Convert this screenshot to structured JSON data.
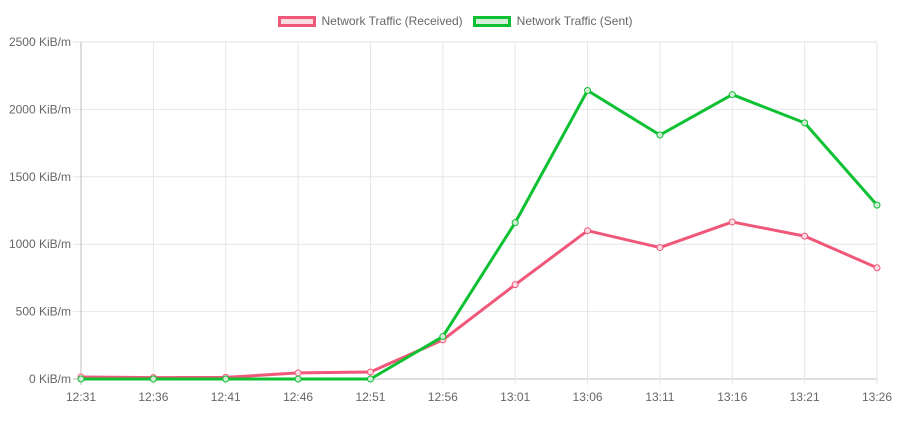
{
  "chart_data": {
    "type": "line",
    "categories": [
      "12:31",
      "12:36",
      "12:41",
      "12:46",
      "12:51",
      "12:56",
      "13:01",
      "13:06",
      "13:11",
      "13:16",
      "13:21",
      "13:26"
    ],
    "series": [
      {
        "name": "Network Traffic (Received)",
        "color": "#f0587a",
        "fill": "#f9dce2",
        "values": [
          15,
          10,
          12,
          45,
          52,
          290,
          700,
          1100,
          975,
          1165,
          1060,
          825
        ]
      },
      {
        "name": "Network Traffic (Sent)",
        "color": "#0ec133",
        "fill": "#d2ecd6",
        "values": [
          0,
          0,
          0,
          0,
          0,
          315,
          1160,
          2140,
          1810,
          2110,
          1900,
          1290
        ]
      }
    ],
    "yticks": [
      "0 KiB/m",
      "500 KiB/m",
      "1000 KiB/m",
      "1500 KiB/m",
      "2000 KiB/m",
      "2500 KiB/m"
    ],
    "ylim": [
      0,
      2500
    ],
    "grid": true,
    "legend_position": "top-center"
  }
}
